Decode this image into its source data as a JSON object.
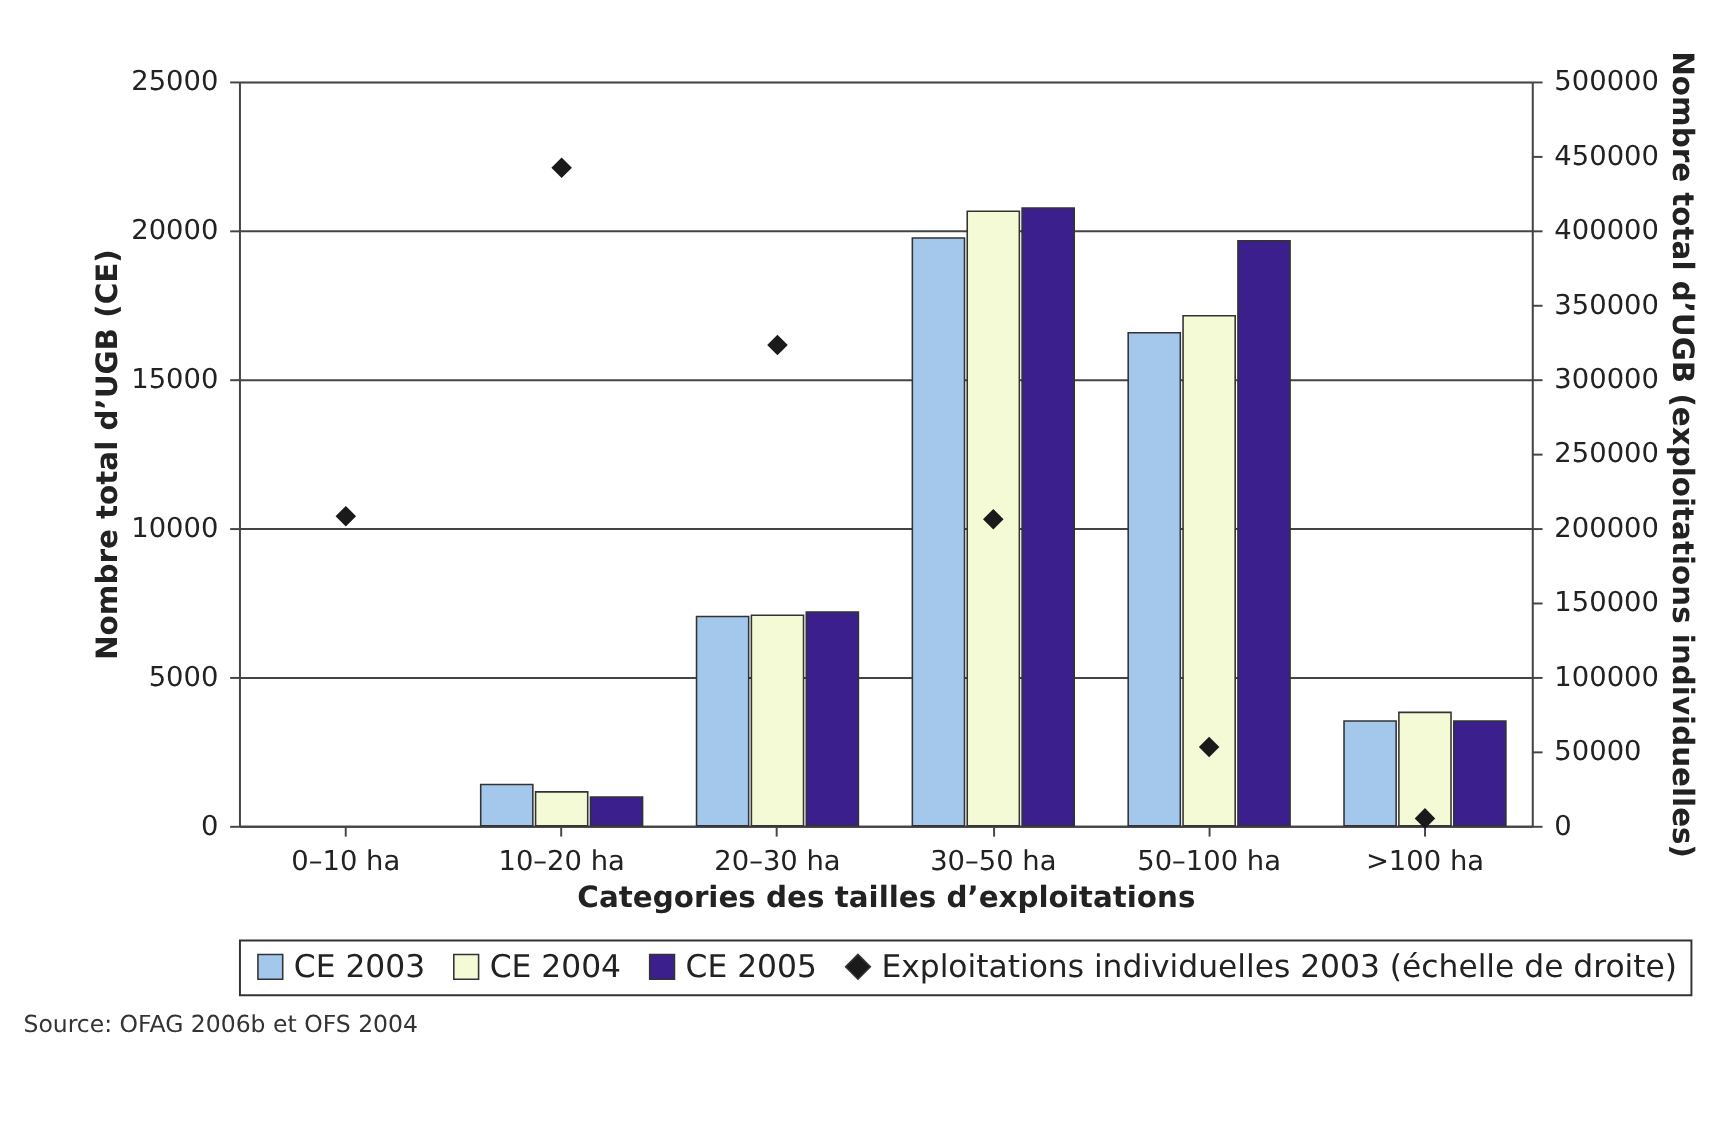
{
  "chart_data": {
    "type": "bar",
    "xlabel": "Categories des tailles d’exploitations",
    "ylabel": "Nombre total d’UGB (CE)",
    "y2label": "Nombre total d’UGB (exploitations individuelles)",
    "categories": [
      "0–10 ha",
      "10–20 ha",
      "20–30 ha",
      "30–50 ha",
      "50–100 ha",
      ">100 ha"
    ],
    "series": [
      {
        "name": "CE 2003",
        "color": "#a4c8ec",
        "values": [
          null,
          1390,
          7030,
          19740,
          16560,
          3520
        ]
      },
      {
        "name": "CE 2004",
        "color": "#f5fad6",
        "values": [
          null,
          1140,
          7070,
          20640,
          17130,
          3810
        ]
      },
      {
        "name": "CE 2005",
        "color": "#3b1f8c",
        "values": [
          null,
          970,
          7180,
          20750,
          19650,
          3520
        ]
      },
      {
        "name": "Exploitations individuelles 2003 (échelle de droite)",
        "type": "scatter",
        "axis": "y2",
        "marker": "diamond",
        "color": "#1a1a1a",
        "values": [
          208000,
          442000,
          323000,
          206000,
          53000,
          5000
        ]
      }
    ],
    "ylim": [
      0,
      25000
    ],
    "yticks": [
      0,
      5000,
      10000,
      15000,
      20000,
      25000
    ],
    "y2lim": [
      0,
      500000
    ],
    "y2ticks": [
      0,
      50000,
      100000,
      150000,
      200000,
      250000,
      300000,
      350000,
      400000,
      450000,
      500000
    ],
    "grid": "y",
    "legend": "bottom",
    "annotations": [
      "Source: OFAG 2006b et OFS 2004"
    ]
  }
}
